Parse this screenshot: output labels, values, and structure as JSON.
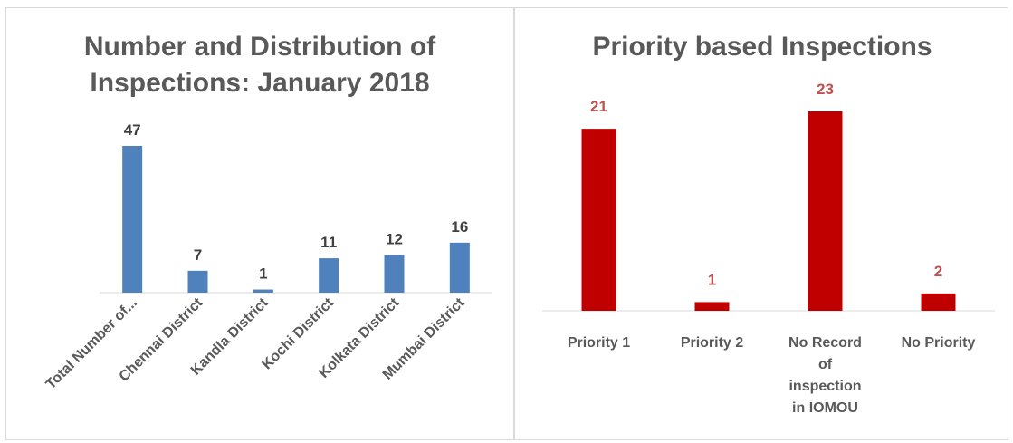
{
  "chart_data": [
    {
      "type": "bar",
      "title_lines": [
        "Number and Distribution of",
        "Inspections: January 2018"
      ],
      "categories": [
        "Total Number of...",
        "Chennai District",
        "Kandla District",
        "Kochi District",
        "Kolkata District",
        "Mumbai District"
      ],
      "values": [
        47,
        7,
        1,
        11,
        12,
        16
      ],
      "bar_color": "#4f81bd",
      "label_color": "#404040",
      "xlabel": "",
      "ylabel": "",
      "ylim": [
        0,
        47
      ],
      "grid": false,
      "legend": "none"
    },
    {
      "type": "bar",
      "title_lines": [
        "Priority based Inspections"
      ],
      "categories": [
        [
          "Priority 1"
        ],
        [
          "Priority 2"
        ],
        [
          "No Record",
          "of",
          "inspection",
          "in IOMOU"
        ],
        [
          "No Priority"
        ]
      ],
      "values": [
        21,
        1,
        23,
        2
      ],
      "bar_color": "#c00000",
      "label_color": "#c0504d",
      "xlabel": "",
      "ylabel": "",
      "ylim": [
        0,
        23
      ],
      "grid": false,
      "legend": "none"
    }
  ]
}
